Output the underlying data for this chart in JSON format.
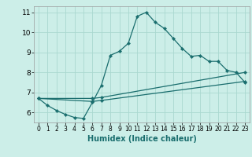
{
  "xlabel": "Humidex (Indice chaleur)",
  "ylabel": "",
  "bg_color": "#cceee8",
  "line_color": "#1a6e6e",
  "grid_color": "#aad8d0",
  "xlim": [
    -0.5,
    23.5
  ],
  "ylim": [
    5.5,
    11.3
  ],
  "xticks": [
    0,
    1,
    2,
    3,
    4,
    5,
    6,
    7,
    8,
    9,
    10,
    11,
    12,
    13,
    14,
    15,
    16,
    17,
    18,
    19,
    20,
    21,
    22,
    23
  ],
  "yticks": [
    6,
    7,
    8,
    9,
    10,
    11
  ],
  "curve1_x": [
    0,
    1,
    2,
    3,
    4,
    5,
    6,
    7,
    8,
    9,
    10,
    11,
    12,
    13,
    14,
    15,
    16,
    17,
    18,
    19,
    20,
    21,
    22,
    23
  ],
  "curve1_y": [
    6.7,
    6.35,
    6.1,
    5.9,
    5.75,
    5.7,
    6.5,
    7.35,
    8.85,
    9.05,
    9.45,
    10.8,
    11.0,
    10.5,
    10.2,
    9.7,
    9.2,
    8.8,
    8.85,
    8.55,
    8.55,
    8.1,
    8.0,
    7.5
  ],
  "curve2_x": [
    0,
    6,
    7,
    23
  ],
  "curve2_y": [
    6.7,
    6.55,
    6.6,
    7.55
  ],
  "curve3_x": [
    0,
    6,
    7,
    23
  ],
  "curve3_y": [
    6.7,
    6.7,
    6.75,
    8.0
  ]
}
